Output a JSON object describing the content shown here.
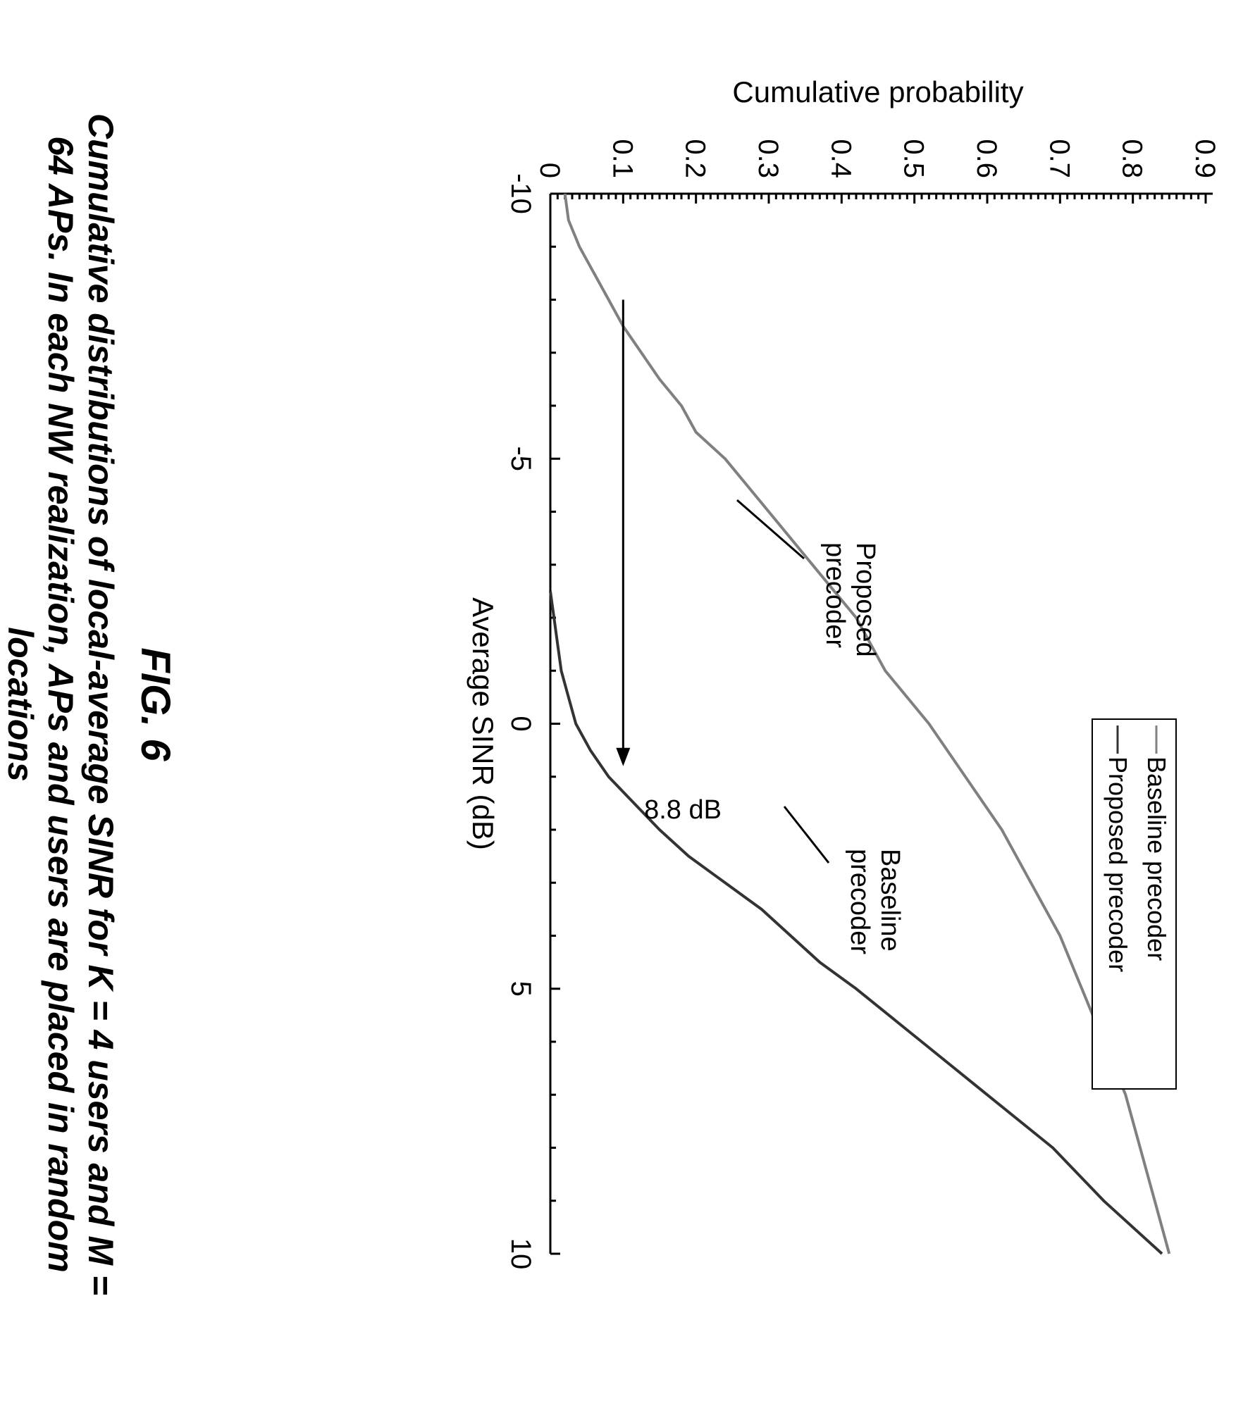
{
  "chart_data": {
    "type": "line",
    "xlabel": "Average SINR (dB)",
    "ylabel": "Cumulative probability",
    "xlim": [
      -10,
      10
    ],
    "ylim": [
      0,
      0.9
    ],
    "x_ticks": [
      "-10",
      "-5",
      "0",
      "5",
      "10"
    ],
    "y_ticks": [
      "0",
      "0.1",
      "0.2",
      "0.3",
      "0.4",
      "0.5",
      "0.6",
      "0.7",
      "0.8",
      "0.9"
    ],
    "grid": false,
    "legend_position": "top-left",
    "series": [
      {
        "name": "Baseline precoder",
        "color": "#808080",
        "x": [
          -10,
          -9.5,
          -9,
          -8.5,
          -8,
          -7.5,
          -7,
          -6.5,
          -6,
          -5.5,
          -5,
          -4,
          -3,
          -2,
          -1,
          0,
          1,
          2,
          3,
          4,
          5,
          6,
          7,
          8,
          9,
          10
        ],
        "y": [
          0.02,
          0.025,
          0.04,
          0.06,
          0.08,
          0.1,
          0.125,
          0.15,
          0.18,
          0.2,
          0.24,
          0.3,
          0.36,
          0.42,
          0.46,
          0.52,
          0.57,
          0.62,
          0.66,
          0.7,
          0.73,
          0.76,
          0.79,
          0.81,
          0.83,
          0.85
        ]
      },
      {
        "name": "Proposed precoder",
        "color": "#333333",
        "x": [
          -2.5,
          -2,
          -1.5,
          -1,
          -0.5,
          0,
          0.5,
          1,
          1.5,
          2,
          2.5,
          3,
          3.5,
          4,
          4.5,
          5,
          6,
          7,
          8,
          9,
          10
        ],
        "y": [
          0.0,
          0.005,
          0.01,
          0.015,
          0.025,
          0.035,
          0.055,
          0.08,
          0.115,
          0.15,
          0.19,
          0.24,
          0.29,
          0.33,
          0.37,
          0.42,
          0.51,
          0.6,
          0.69,
          0.76,
          0.84
        ]
      }
    ],
    "annotations": [
      {
        "text_lines": [
          "Baseline",
          "precoder"
        ]
      },
      {
        "text_lines": [
          "Proposed",
          "precoder"
        ]
      },
      {
        "text": "8.8 dB",
        "arrow_from": [
          -8,
          0.1
        ],
        "arrow_to": [
          0.8,
          0.1
        ]
      }
    ]
  },
  "figure": {
    "number": "FIG. 6",
    "caption_lines": [
      "Cumulative distributions of local-average SINR for K = 4 users and M =",
      "64 APs. In each NW realization, APs and users are placed in random",
      "locations"
    ]
  }
}
